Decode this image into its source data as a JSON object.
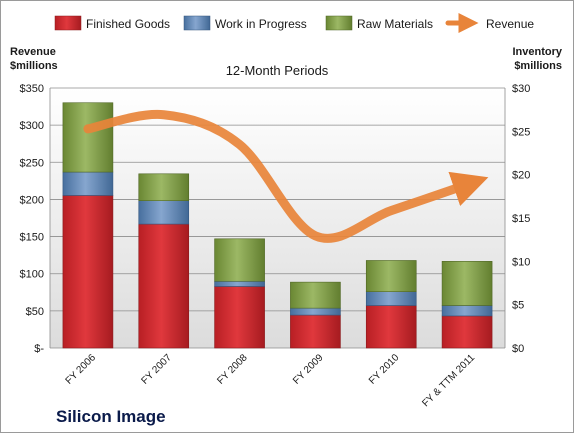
{
  "chart_data": {
    "type": "bar",
    "stacked": true,
    "title": "12-Month Periods",
    "company": "Silicon Image",
    "categories": [
      "FY 2006",
      "FY 2007",
      "FY 2008",
      "FY 2009",
      "FY 2010",
      "FY & TTM 2011"
    ],
    "left_axis": {
      "label_line1": "Revenue",
      "label_line2": "$millions",
      "ticks": [
        "$-",
        "$50",
        "$100",
        "$150",
        "$200",
        "$250",
        "$300",
        "$350"
      ],
      "range": [
        0,
        350
      ]
    },
    "right_axis": {
      "label_line1": "Inventory",
      "label_line2": "$millions",
      "ticks": [
        "$0",
        "$5",
        "$10",
        "$15",
        "$20",
        "$25",
        "$30"
      ],
      "range": [
        0,
        30
      ]
    },
    "series": [
      {
        "name": "Finished Goods",
        "axis": "right",
        "color": "#c0282d",
        "values": [
          17.6,
          14.3,
          7.1,
          3.8,
          4.9,
          3.7
        ]
      },
      {
        "name": "Work in Progress",
        "axis": "right",
        "color": "#4f81bd",
        "values": [
          2.7,
          2.7,
          0.6,
          0.8,
          1.6,
          1.2
        ]
      },
      {
        "name": "Raw Materials",
        "axis": "right",
        "color": "#77933c",
        "values": [
          8.0,
          3.1,
          4.9,
          3.0,
          3.6,
          5.1
        ]
      },
      {
        "name": "Revenue",
        "axis": "left",
        "color": "#e8843a",
        "type": "line",
        "values": [
          295,
          314,
          274,
          151,
          185,
          220
        ]
      }
    ],
    "grid": true,
    "legend": "top"
  }
}
